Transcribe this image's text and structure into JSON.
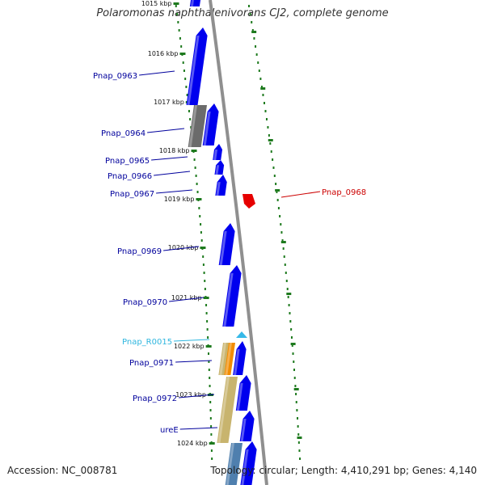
{
  "title": "Polaromonas naphthalenivorans CJ2, complete genome",
  "footer": {
    "accession": "Accession: NC_008781",
    "summary": "Topology: circular; Length: 4,410,291 bp; Genes: 4,140"
  },
  "colors": {
    "backbone": "#8f8f8f",
    "cds": "#0000ee",
    "rrna_trna": "#36b9e8",
    "pseudogene": "#6b6b6b",
    "orange_feature": "#f28c00",
    "khaki_feature": "#c8b46e",
    "steel_feature": "#4f7fae",
    "reverse_cds": "#e60000",
    "tick_dash": "#1e7a1e",
    "label_forward": "#00009c",
    "label_reverse": "#cc0000",
    "label_rna": "#2eb6df"
  },
  "kbp_ticks": [
    "1015 kbp",
    "1016 kbp",
    "1017 kbp",
    "1018 kbp",
    "1019 kbp",
    "1020 kbp",
    "1021 kbp",
    "1022 kbp",
    "1023 kbp",
    "1024 kbp"
  ],
  "gene_labels": [
    {
      "text": "Pnap_0963",
      "strand": "forward"
    },
    {
      "text": "Pnap_0964",
      "strand": "forward"
    },
    {
      "text": "Pnap_0965",
      "strand": "forward"
    },
    {
      "text": "Pnap_0966",
      "strand": "forward"
    },
    {
      "text": "Pnap_0967",
      "strand": "forward"
    },
    {
      "text": "Pnap_0968",
      "strand": "reverse"
    },
    {
      "text": "Pnap_0969",
      "strand": "forward"
    },
    {
      "text": "Pnap_0970",
      "strand": "forward"
    },
    {
      "text": "Pnap_R0015",
      "strand": "rna"
    },
    {
      "text": "Pnap_0971",
      "strand": "forward"
    },
    {
      "text": "Pnap_0972",
      "strand": "forward"
    },
    {
      "text": "ureE",
      "strand": "forward"
    }
  ]
}
